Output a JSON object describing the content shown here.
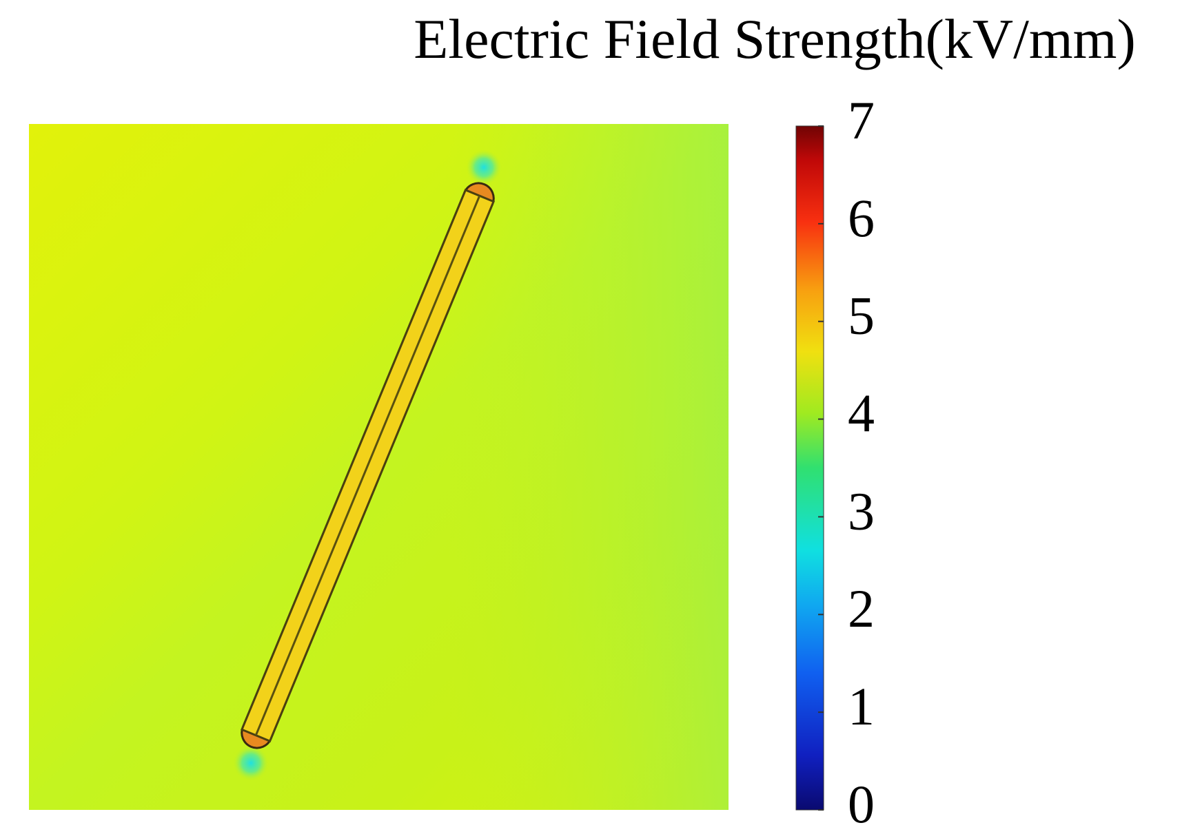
{
  "chart_data": {
    "type": "colormap",
    "title": "Electric Field Strength(kV/mm)",
    "clim": [
      0,
      7
    ],
    "cticks": [
      0,
      1,
      2,
      3,
      4,
      5,
      6,
      7
    ]
  }
}
